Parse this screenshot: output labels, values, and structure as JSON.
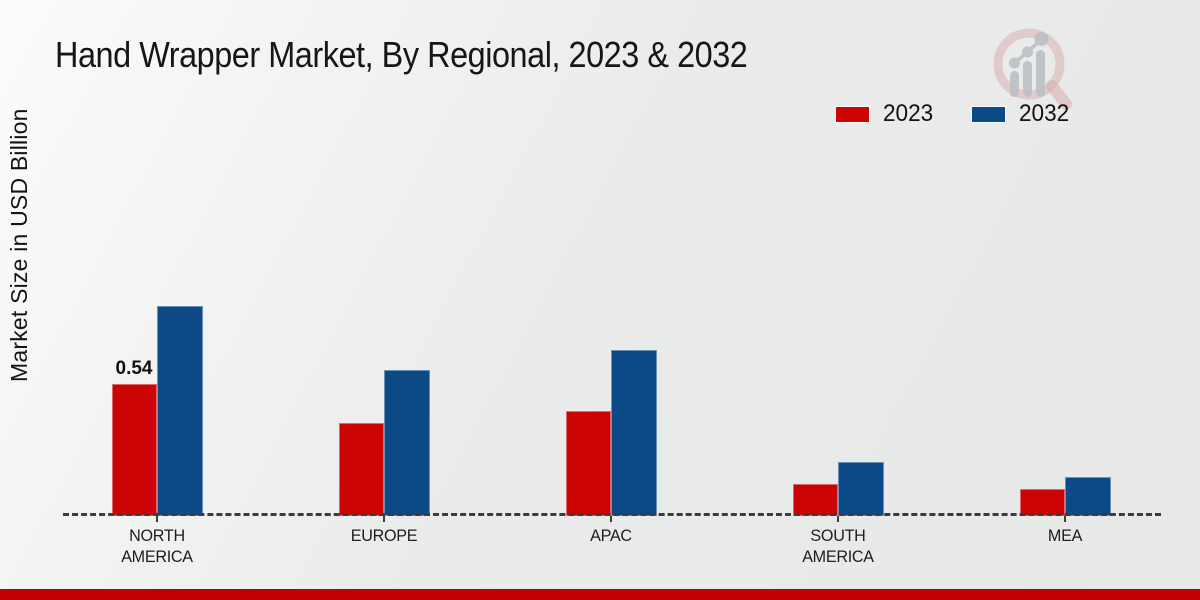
{
  "title": "Hand Wrapper Market, By Regional, 2023 & 2032",
  "ylabel": "Market Size in USD Billion",
  "legend": {
    "items": [
      {
        "label": "2023",
        "color": "#cc0404"
      },
      {
        "label": "2032",
        "color": "#0c4a87"
      }
    ]
  },
  "colors": {
    "series_2023": "#cc0404",
    "series_2032": "#0c4a87",
    "baseline": "#3c3c3c",
    "footer_accent": "#c00000",
    "watermark_ring": "#d9aeb0",
    "watermark_bars": "#bcbfc5"
  },
  "watermark_icon": "magnifier-bar-chart-logo",
  "chart_data": {
    "type": "bar",
    "categories": [
      "NORTH AMERICA",
      "EUROPE",
      "APAC",
      "SOUTH AMERICA",
      "MEA"
    ],
    "series": [
      {
        "name": "2023",
        "color": "#cc0404",
        "values": [
          0.54,
          0.38,
          0.43,
          0.13,
          0.11
        ]
      },
      {
        "name": "2032",
        "color": "#0c4a87",
        "values": [
          0.86,
          0.6,
          0.68,
          0.22,
          0.16
        ]
      }
    ],
    "title": "Hand Wrapper Market, By Regional, 2023 & 2032",
    "xlabel": "",
    "ylabel": "Market Size in USD Billion",
    "ylim": [
      0,
      1.0
    ],
    "grid": false,
    "legend_position": "top-right",
    "data_labels": [
      {
        "series": "2023",
        "category": "NORTH AMERICA",
        "text": "0.54"
      }
    ]
  }
}
